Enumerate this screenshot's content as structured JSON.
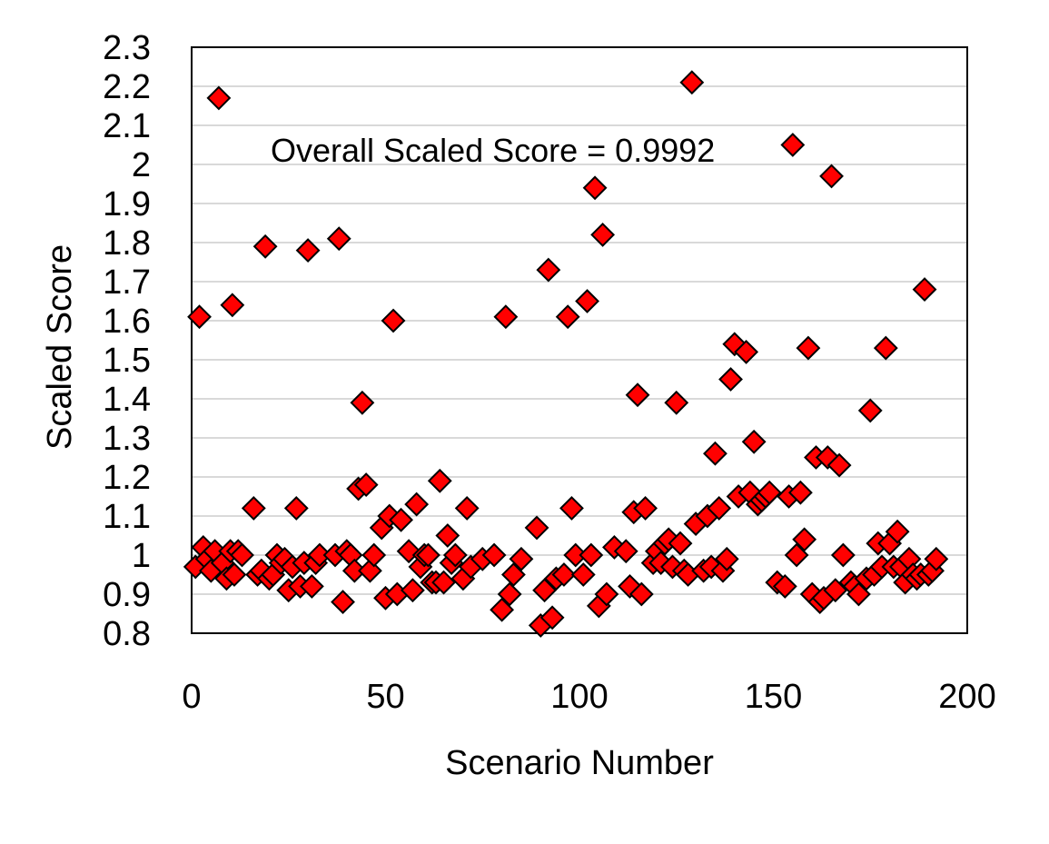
{
  "chart_data": {
    "type": "scatter",
    "xlabel": "Scenario Number",
    "ylabel": "Scaled Score",
    "xlim": [
      0,
      200
    ],
    "ylim": [
      0.8,
      2.3
    ],
    "xticks": [
      "0",
      "50",
      "100",
      "150",
      "200"
    ],
    "yticks": [
      "0.8",
      "0.9",
      "1",
      "1.1",
      "1.2",
      "1.3",
      "1.4",
      "1.5",
      "1.6",
      "1.7",
      "1.8",
      "1.9",
      "2",
      "2.1",
      "2.2",
      "2.3"
    ],
    "grid": "horizontal",
    "marker": "diamond",
    "marker_color": "#ff0000",
    "annotation": "Overall Scaled Score = 0.9992",
    "points": [
      [
        1,
        0.97
      ],
      [
        2,
        1.61
      ],
      [
        3,
        1.02
      ],
      [
        4,
        0.99
      ],
      [
        5,
        0.96
      ],
      [
        6,
        1.01
      ],
      [
        7,
        2.17
      ],
      [
        8,
        0.98
      ],
      [
        9,
        0.94
      ],
      [
        10,
        1.01
      ],
      [
        10.5,
        1.64
      ],
      [
        11,
        0.95
      ],
      [
        12,
        1.01
      ],
      [
        13,
        1.0
      ],
      [
        16,
        1.12
      ],
      [
        17,
        0.95
      ],
      [
        18,
        0.96
      ],
      [
        19,
        1.79
      ],
      [
        20,
        0.94
      ],
      [
        21,
        0.95
      ],
      [
        22,
        1.0
      ],
      [
        23,
        0.98
      ],
      [
        24,
        0.99
      ],
      [
        25,
        0.91
      ],
      [
        26,
        0.97
      ],
      [
        27,
        1.12
      ],
      [
        28,
        0.92
      ],
      [
        29,
        0.98
      ],
      [
        30,
        1.78
      ],
      [
        31,
        0.92
      ],
      [
        32,
        0.98
      ],
      [
        33,
        1.0
      ],
      [
        37,
        1.0
      ],
      [
        38,
        1.81
      ],
      [
        39,
        0.88
      ],
      [
        40,
        1.01
      ],
      [
        41,
        1.0
      ],
      [
        42,
        0.96
      ],
      [
        43,
        1.17
      ],
      [
        44,
        1.39
      ],
      [
        45,
        1.18
      ],
      [
        46,
        0.96
      ],
      [
        47,
        1.0
      ],
      [
        49,
        1.07
      ],
      [
        50,
        0.89
      ],
      [
        51,
        1.1
      ],
      [
        52,
        1.6
      ],
      [
        53,
        0.9
      ],
      [
        54,
        1.09
      ],
      [
        56,
        1.01
      ],
      [
        57,
        0.91
      ],
      [
        58,
        1.13
      ],
      [
        59,
        0.97
      ],
      [
        60,
        1.0
      ],
      [
        61,
        1.0
      ],
      [
        62,
        0.93
      ],
      [
        63,
        0.93
      ],
      [
        64,
        1.19
      ],
      [
        65,
        0.93
      ],
      [
        66,
        1.05
      ],
      [
        67,
        0.98
      ],
      [
        68,
        1.0
      ],
      [
        70,
        0.94
      ],
      [
        71,
        1.12
      ],
      [
        72,
        0.97
      ],
      [
        75,
        0.99
      ],
      [
        78,
        1.0
      ],
      [
        80,
        0.86
      ],
      [
        81,
        1.61
      ],
      [
        82,
        0.9
      ],
      [
        83,
        0.95
      ],
      [
        85,
        0.99
      ],
      [
        89,
        1.07
      ],
      [
        90,
        0.82
      ],
      [
        91,
        0.91
      ],
      [
        92,
        1.73
      ],
      [
        93,
        0.84
      ],
      [
        94,
        0.94
      ],
      [
        96,
        0.95
      ],
      [
        97,
        1.61
      ],
      [
        98,
        1.12
      ],
      [
        99,
        1.0
      ],
      [
        101,
        0.95
      ],
      [
        102,
        1.65
      ],
      [
        103,
        1.0
      ],
      [
        104,
        1.94
      ],
      [
        105,
        0.87
      ],
      [
        106,
        1.82
      ],
      [
        107,
        0.9
      ],
      [
        109,
        1.02
      ],
      [
        112,
        1.01
      ],
      [
        113,
        0.92
      ],
      [
        114,
        1.11
      ],
      [
        115,
        1.41
      ],
      [
        116,
        0.9
      ],
      [
        117,
        1.12
      ],
      [
        119,
        0.98
      ],
      [
        120,
        1.01
      ],
      [
        121,
        0.98
      ],
      [
        122,
        1.03
      ],
      [
        123,
        1.04
      ],
      [
        124,
        0.97
      ],
      [
        125,
        1.39
      ],
      [
        126,
        1.03
      ],
      [
        127,
        0.96
      ],
      [
        128,
        0.95
      ],
      [
        129,
        2.21
      ],
      [
        130,
        1.08
      ],
      [
        132,
        0.96
      ],
      [
        133,
        1.1
      ],
      [
        134,
        0.97
      ],
      [
        135,
        1.26
      ],
      [
        136,
        1.12
      ],
      [
        137,
        0.96
      ],
      [
        138,
        0.99
      ],
      [
        139,
        1.45
      ],
      [
        140,
        1.54
      ],
      [
        141,
        1.15
      ],
      [
        143,
        1.52
      ],
      [
        144,
        1.16
      ],
      [
        145,
        1.29
      ],
      [
        146,
        1.13
      ],
      [
        147,
        1.14
      ],
      [
        148,
        1.15
      ],
      [
        149,
        1.16
      ],
      [
        151,
        0.93
      ],
      [
        153,
        0.92
      ],
      [
        154,
        1.15
      ],
      [
        155,
        2.05
      ],
      [
        156,
        1.0
      ],
      [
        157,
        1.16
      ],
      [
        158,
        1.04
      ],
      [
        159,
        1.53
      ],
      [
        160,
        0.9
      ],
      [
        161,
        1.25
      ],
      [
        162,
        0.88
      ],
      [
        163,
        0.89
      ],
      [
        164,
        1.25
      ],
      [
        165,
        1.97
      ],
      [
        166,
        0.91
      ],
      [
        167,
        1.23
      ],
      [
        168,
        1.0
      ],
      [
        170,
        0.93
      ],
      [
        171,
        0.92
      ],
      [
        172,
        0.9
      ],
      [
        174,
        0.94
      ],
      [
        175,
        1.37
      ],
      [
        176,
        0.95
      ],
      [
        177,
        1.03
      ],
      [
        178,
        0.97
      ],
      [
        179,
        1.53
      ],
      [
        180,
        1.03
      ],
      [
        181,
        0.97
      ],
      [
        182,
        1.06
      ],
      [
        183,
        0.97
      ],
      [
        184,
        0.93
      ],
      [
        185,
        0.99
      ],
      [
        186,
        0.95
      ],
      [
        187,
        0.94
      ],
      [
        188,
        0.95
      ],
      [
        189,
        1.68
      ],
      [
        190,
        0.95
      ],
      [
        191,
        0.96
      ],
      [
        192,
        0.99
      ]
    ]
  }
}
